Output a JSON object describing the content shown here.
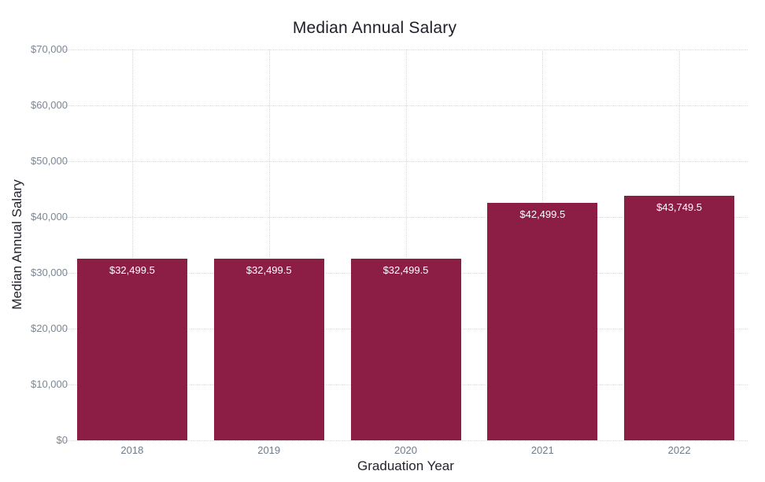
{
  "chart_data": {
    "type": "bar",
    "title": "Median Annual Salary",
    "xlabel": "Graduation Year",
    "ylabel": "Median Annual Salary",
    "categories": [
      "2018",
      "2019",
      "2020",
      "2021",
      "2022"
    ],
    "values": [
      32499.5,
      32499.5,
      32499.5,
      42499.5,
      43749.5
    ],
    "bar_labels": [
      "$32,499.5",
      "$32,499.5",
      "$32,499.5",
      "$42,499.5",
      "$43,749.5"
    ],
    "ylim": [
      0,
      70000
    ],
    "ytick_step": 10000,
    "ytick_labels": [
      "$0",
      "$10,000",
      "$20,000",
      "$30,000",
      "$40,000",
      "$50,000",
      "$60,000",
      "$70,000"
    ],
    "grid": "dotted, horizontal at every y tick and vertical at every bar center",
    "legend": "none",
    "colors": {
      "bar_fill": "#8C1D45",
      "bar_value_label": "#ffffff",
      "title_text": "#1f1f2b",
      "axis_title_text": "#24242f",
      "ytick_text": "#7b8694",
      "xtick_text": "#6e7b8a",
      "gridline": "#d9d9d9",
      "background": "#ffffff"
    }
  }
}
